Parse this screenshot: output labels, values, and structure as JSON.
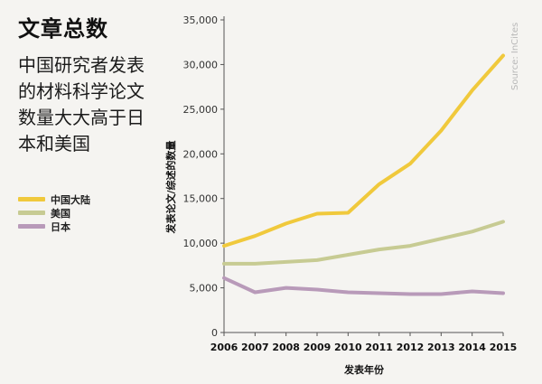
{
  "title": "文章总数",
  "subtitle": "中国研究者发表的材料科学论文数量大大高于日本和美国",
  "source": "Source: InCites",
  "colors": {
    "background": "#f5f4f1",
    "axis": "#555555"
  },
  "chart_data": {
    "type": "line",
    "xlabel": "发表年份",
    "ylabel": "发表论文/综述的数量",
    "x": [
      2006,
      2007,
      2008,
      2009,
      2010,
      2011,
      2012,
      2013,
      2014,
      2015
    ],
    "ylim": [
      0,
      35000
    ],
    "yticks": [
      0,
      5000,
      10000,
      15000,
      20000,
      25000,
      30000,
      35000
    ],
    "ytick_labels": [
      "0",
      "5,000",
      "10,000",
      "15,000",
      "20,000",
      "25,000",
      "30,000",
      "35,000"
    ],
    "grid": false,
    "legend_position": "left",
    "series": [
      {
        "name": "中国大陆",
        "color": "#f0c93c",
        "values": [
          9700,
          10800,
          12200,
          13300,
          13400,
          16600,
          18900,
          22600,
          27100,
          31000
        ]
      },
      {
        "name": "美国",
        "color": "#c7cb93",
        "values": [
          7700,
          7700,
          7900,
          8100,
          8700,
          9300,
          9700,
          10500,
          11300,
          12400
        ]
      },
      {
        "name": "日本",
        "color": "#b89ab9",
        "values": [
          6100,
          4500,
          5000,
          4800,
          4500,
          4400,
          4300,
          4300,
          4600,
          4400
        ]
      }
    ]
  }
}
